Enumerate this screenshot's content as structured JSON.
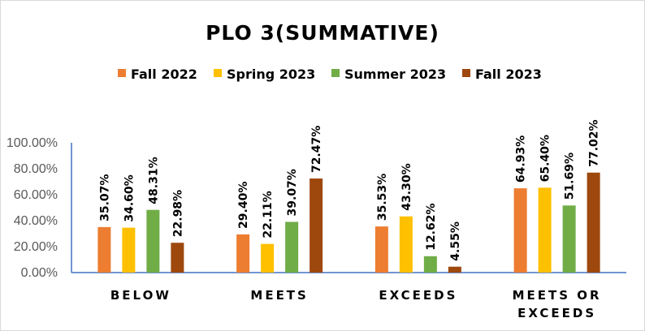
{
  "chart_data": {
    "type": "bar",
    "title": "PLO 3(SUMMATIVE)",
    "xlabel": "",
    "ylabel": "",
    "categories": [
      [
        "BELOW"
      ],
      [
        "MEETS"
      ],
      [
        "EXCEEDS"
      ],
      [
        "MEETS OR",
        "EXCEEDS"
      ]
    ],
    "series": [
      {
        "name": "Fall 2022",
        "color": "#ED7D31",
        "values": [
          35.07,
          29.4,
          35.53,
          64.93
        ],
        "labels": [
          "35.07%",
          "29.40%",
          "35.53%",
          "64.93%"
        ]
      },
      {
        "name": "Spring 2023",
        "color": "#FFC000",
        "values": [
          34.6,
          22.11,
          43.3,
          65.4
        ],
        "labels": [
          "34.60%",
          "22.11%",
          "43.30%",
          "65.40%"
        ]
      },
      {
        "name": "Summer 2023",
        "color": "#70AD47",
        "values": [
          48.31,
          39.07,
          12.62,
          51.69
        ],
        "labels": [
          "48.31%",
          "39.07%",
          "12.62%",
          "51.69%"
        ]
      },
      {
        "name": "Fall 2023",
        "color": "#9E480E",
        "values": [
          22.98,
          72.47,
          4.55,
          77.02
        ],
        "labels": [
          "22.98%",
          "72.47%",
          "4.55%",
          "77.02%"
        ]
      }
    ],
    "ylim": [
      0,
      100
    ],
    "yticks": [
      "0.00%",
      "20.00%",
      "40.00%",
      "60.00%",
      "80.00%",
      "100.00%"
    ],
    "grid": false,
    "legend": "top",
    "axis_color": "#4472C4"
  }
}
